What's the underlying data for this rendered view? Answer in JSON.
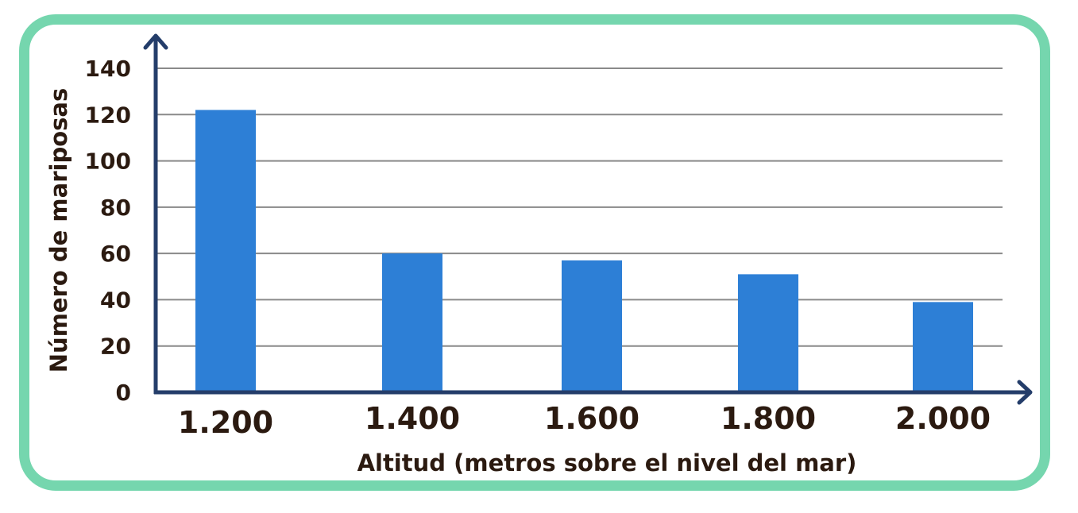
{
  "chart_data": {
    "type": "bar",
    "title": "",
    "xlabel": "Altitud (metros sobre el nivel del mar)",
    "ylabel": "Número de mariposas",
    "categories": [
      "1.200",
      "1.400",
      "1.600",
      "1.800",
      "2.000"
    ],
    "values": [
      122,
      60,
      57,
      51,
      39
    ],
    "ylim": [
      0,
      140
    ],
    "yticks": [
      "0",
      "20",
      "40",
      "60",
      "80",
      "100",
      "120",
      "140"
    ],
    "grid": true,
    "colors": {
      "bar": "#2d7fd6",
      "axis": "#243d6a",
      "grid": "#8a8a8a",
      "frame": "#75d6ae",
      "text": "#2b1a10"
    }
  }
}
